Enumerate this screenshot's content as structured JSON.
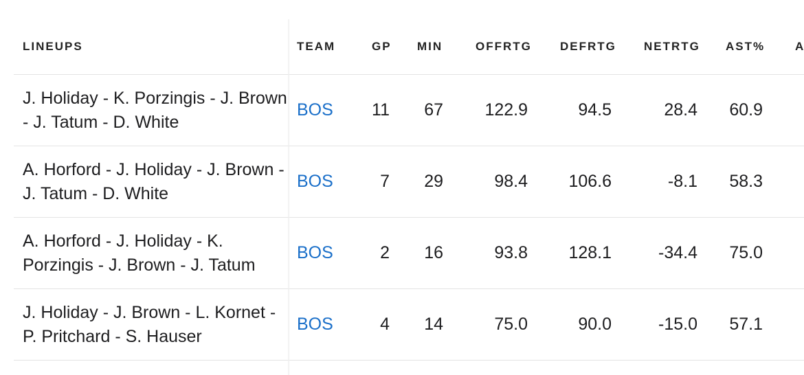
{
  "headers": {
    "lineups": "LINEUPS",
    "team": "TEAM",
    "gp": "GP",
    "min": "MIN",
    "offrtg": "OFFRTG",
    "defrtg": "DEFRTG",
    "netrtg": "NETRTG",
    "ast_pct": "AST%",
    "next_col": "A"
  },
  "rows": [
    {
      "lineup": "J. Holiday - K. Porzingis - J. Brown - J. Tatum - D. White",
      "team": "BOS",
      "gp": "11",
      "min": "67",
      "offrtg": "122.9",
      "defrtg": "94.5",
      "netrtg": "28.4",
      "ast_pct": "60.9"
    },
    {
      "lineup": "A. Horford - J. Holiday - J. Brown - J. Tatum - D. White",
      "team": "BOS",
      "gp": "7",
      "min": "29",
      "offrtg": "98.4",
      "defrtg": "106.6",
      "netrtg": "-8.1",
      "ast_pct": "58.3"
    },
    {
      "lineup": "A. Horford - J. Holiday - K. Porzingis - J. Brown - J. Tatum",
      "team": "BOS",
      "gp": "2",
      "min": "16",
      "offrtg": "93.8",
      "defrtg": "128.1",
      "netrtg": "-34.4",
      "ast_pct": "75.0"
    },
    {
      "lineup": "J. Holiday - J. Brown - L. Kornet - P. Pritchard - S. Hauser",
      "team": "BOS",
      "gp": "4",
      "min": "14",
      "offrtg": "75.0",
      "defrtg": "90.0",
      "netrtg": "-15.0",
      "ast_pct": "57.1"
    }
  ],
  "colors": {
    "link": "#1a6fc9",
    "text": "#1d1d1f",
    "divider": "#e3e3e3"
  }
}
